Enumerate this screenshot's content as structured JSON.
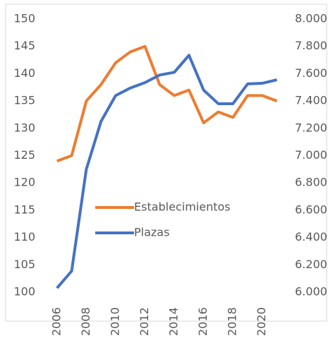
{
  "chart_data": {
    "type": "line",
    "x": [
      2006,
      2007,
      2008,
      2009,
      2010,
      2011,
      2012,
      2013,
      2014,
      2015,
      2016,
      2017,
      2018,
      2019,
      2020,
      2021
    ],
    "series": [
      {
        "name": "Establecimientos",
        "color": "#ED7D31",
        "values": [
          124,
          125,
          135,
          138,
          142,
          144,
          145,
          138,
          136,
          137,
          131,
          133,
          132,
          136,
          136,
          135
        ]
      },
      {
        "name": "Plazas",
        "color": "#4472C4",
        "axis": "y2",
        "values": [
          6030,
          6155,
          6900,
          7250,
          7440,
          7495,
          7535,
          7590,
          7610,
          7735,
          7480,
          7380,
          7380,
          7525,
          7530,
          7555
        ]
      }
    ],
    "xlim": [
      2005,
      2021.6
    ],
    "xticks": [
      2006,
      2008,
      2010,
      2012,
      2014,
      2016,
      2018,
      2020
    ],
    "ylim": [
      95,
      150
    ],
    "yticks": [
      100,
      105,
      110,
      115,
      120,
      125,
      130,
      135,
      140,
      145,
      150
    ],
    "y2lim": [
      5800,
      8000
    ],
    "y2ticks": [
      {
        "value": 6000,
        "label": "6.000"
      },
      {
        "value": 6200,
        "label": "6.200"
      },
      {
        "value": 6400,
        "label": "6.400"
      },
      {
        "value": 6600,
        "label": "6.600"
      },
      {
        "value": 6800,
        "label": "6.800"
      },
      {
        "value": 7000,
        "label": "7.000"
      },
      {
        "value": 7200,
        "label": "7.200"
      },
      {
        "value": 7400,
        "label": "7.400"
      },
      {
        "value": 7600,
        "label": "7.600"
      },
      {
        "value": 7800,
        "label": "7.800"
      },
      {
        "value": 8000,
        "label": "8.000"
      }
    ],
    "legend": "center"
  }
}
